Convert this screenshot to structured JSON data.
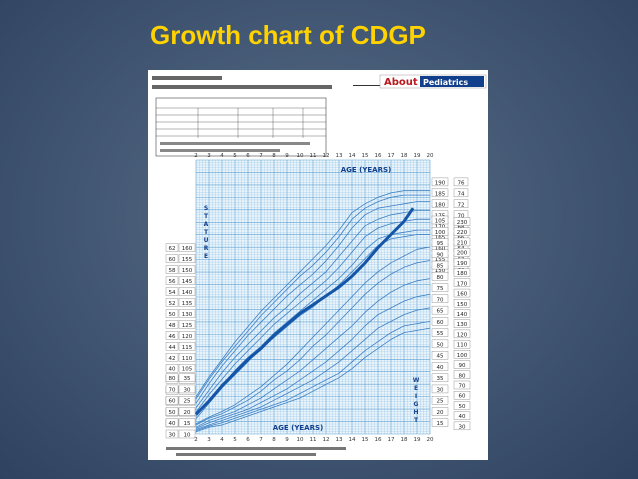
{
  "slide": {
    "title": "Growth chart of CDGP"
  },
  "logo": {
    "brand": "About",
    "section": "Pediatrics"
  },
  "chart_data": {
    "type": "line",
    "title": "",
    "x_axis_top_label": "AGE (YEARS)",
    "x_axis_bottom_label": "AGE (YEARS)",
    "stature_label": "STATURE",
    "weight_label": "WEIGHT",
    "x_ticks": [
      2,
      3,
      4,
      5,
      6,
      7,
      8,
      9,
      10,
      11,
      12,
      13,
      14,
      15,
      16,
      17,
      18,
      19,
      20
    ],
    "xlim": [
      2,
      20
    ],
    "stature_ylim_cm": [
      75,
      200
    ],
    "weight_ylim_kg": [
      10,
      105
    ],
    "left_stature_ticks_cm": [
      160,
      155,
      150,
      145,
      140,
      135,
      130,
      125,
      120,
      115,
      110,
      105,
      100,
      95,
      90,
      85,
      80
    ],
    "left_stature_ticks_in": [
      62,
      60,
      58,
      56,
      54,
      52,
      50,
      48,
      46,
      44,
      42,
      40,
      38,
      36,
      34,
      32,
      30
    ],
    "right_stature_ticks_cm": [
      190,
      185,
      180,
      175,
      170,
      165,
      160,
      155,
      150
    ],
    "right_stature_ticks_in": [
      76,
      74,
      72,
      70,
      68,
      66,
      64,
      62,
      60
    ],
    "right_weight_ticks_kg": [
      105,
      100,
      95,
      90,
      85,
      80,
      75,
      70,
      65,
      60,
      55,
      50,
      45,
      40,
      35,
      30,
      25,
      20,
      15
    ],
    "right_weight_ticks_lb": [
      230,
      220,
      210,
      200,
      190,
      180,
      170,
      160,
      150,
      140,
      130,
      120,
      110,
      100,
      90,
      80,
      70,
      60,
      50,
      40,
      30
    ],
    "left_weight_ticks_kg": [
      35,
      30,
      25,
      20,
      15,
      10
    ],
    "left_weight_ticks_lb": [
      80,
      70,
      60,
      50,
      40,
      30
    ],
    "stature_percentiles": [
      {
        "name": "5",
        "values": [
          82,
          89,
          96,
          102,
          108,
          114,
          119,
          124,
          129,
          133,
          138,
          143,
          149,
          155,
          161,
          164,
          165,
          166,
          166
        ]
      },
      {
        "name": "10",
        "values": [
          83,
          90,
          97,
          104,
          110,
          115,
          121,
          126,
          131,
          136,
          141,
          146,
          152,
          159,
          164,
          166,
          167,
          168,
          168
        ]
      },
      {
        "name": "25",
        "values": [
          85,
          93,
          100,
          107,
          113,
          119,
          125,
          130,
          135,
          140,
          145,
          151,
          158,
          165,
          169,
          171,
          172,
          173,
          173
        ]
      },
      {
        "name": "50",
        "values": [
          87,
          95,
          103,
          110,
          116,
          122,
          128,
          133,
          139,
          144,
          149,
          156,
          163,
          170,
          173,
          175,
          176,
          177,
          177
        ]
      },
      {
        "name": "75",
        "values": [
          89,
          98,
          106,
          113,
          120,
          126,
          132,
          138,
          143,
          148,
          154,
          161,
          169,
          175,
          178,
          179,
          180,
          181,
          181
        ]
      },
      {
        "name": "90",
        "values": [
          91,
          100,
          108,
          115,
          122,
          129,
          135,
          141,
          147,
          152,
          158,
          165,
          173,
          178,
          181,
          183,
          184,
          184,
          184
        ]
      },
      {
        "name": "95",
        "values": [
          92,
          101,
          109,
          117,
          124,
          131,
          137,
          143,
          149,
          155,
          161,
          168,
          176,
          180,
          183,
          185,
          186,
          186,
          186
        ]
      }
    ],
    "weight_percentiles": [
      {
        "name": "5",
        "values": [
          11,
          13,
          14,
          16,
          18,
          20,
          22,
          24,
          26,
          29,
          32,
          35,
          39,
          44,
          48,
          52,
          55,
          56,
          57
        ]
      },
      {
        "name": "10",
        "values": [
          11.5,
          13.5,
          15,
          17,
          19,
          21,
          23,
          25,
          28,
          31,
          34,
          37,
          42,
          47,
          51,
          55,
          58,
          59,
          60
        ]
      },
      {
        "name": "25",
        "values": [
          12,
          14,
          16,
          18,
          20,
          22,
          25,
          28,
          31,
          34,
          38,
          42,
          47,
          52,
          57,
          60,
          63,
          65,
          66
        ]
      },
      {
        "name": "50",
        "values": [
          12.5,
          15,
          17,
          19,
          21,
          24,
          27,
          30,
          34,
          38,
          42,
          47,
          52,
          58,
          63,
          66,
          69,
          71,
          72
        ]
      },
      {
        "name": "75",
        "values": [
          13,
          16,
          18,
          20,
          23,
          26,
          30,
          34,
          38,
          43,
          48,
          53,
          58,
          64,
          69,
          73,
          76,
          78,
          79
        ]
      },
      {
        "name": "90",
        "values": [
          14,
          17,
          19,
          22,
          25,
          29,
          34,
          38,
          43,
          49,
          54,
          60,
          66,
          72,
          77,
          81,
          84,
          86,
          87
        ]
      },
      {
        "name": "95",
        "values": [
          14.5,
          17.5,
          20,
          23,
          27,
          31,
          36,
          41,
          47,
          53,
          59,
          65,
          71,
          77,
          82,
          86,
          89,
          92,
          93
        ]
      }
    ],
    "patient_stature_curve": {
      "name": "CDGP",
      "x": [
        2,
        3,
        4,
        5,
        6,
        7,
        8,
        9,
        10,
        11,
        12,
        13,
        14,
        15,
        16,
        17,
        18,
        18.7
      ],
      "values": [
        84,
        90,
        97,
        103,
        109,
        114,
        120,
        125,
        130,
        134,
        138,
        142,
        147,
        153,
        160,
        166,
        172,
        178
      ]
    },
    "colors": {
      "grid": "#8fc1e6",
      "grid_major": "#5b9fd3",
      "percentile_line": "#3b7fc4",
      "patient_line": "#1555a8",
      "paper": "#eaf4fb",
      "tick_box": "#ffffff"
    }
  }
}
